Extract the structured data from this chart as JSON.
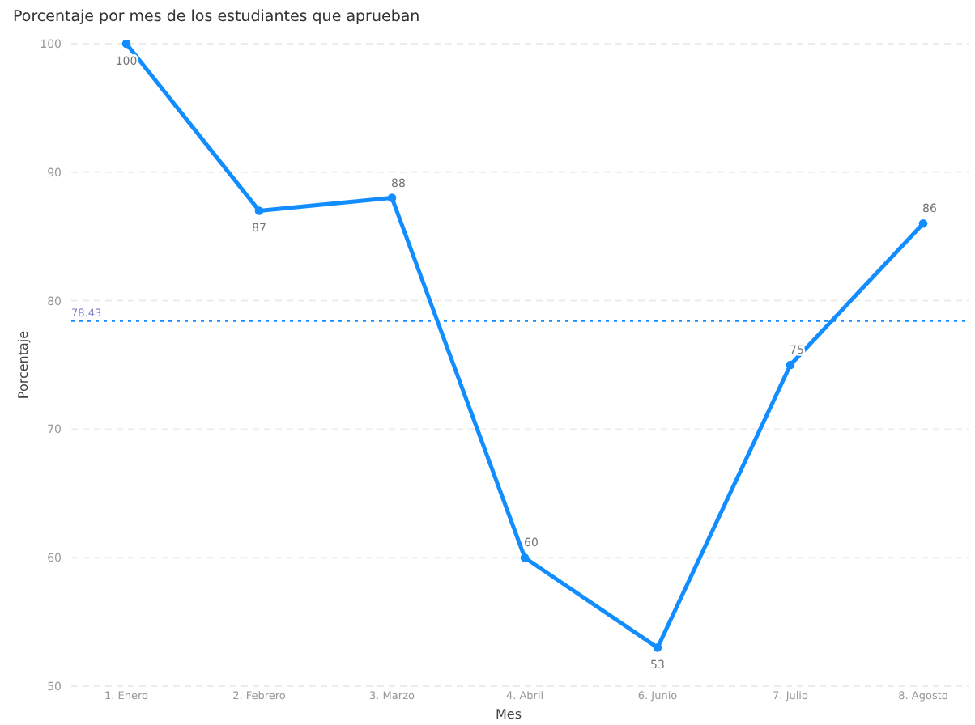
{
  "chart_data": {
    "type": "line",
    "title": "Porcentaje por mes de los estudiantes que aprueban",
    "xlabel": "Mes",
    "ylabel": "Porcentaje",
    "categories": [
      "1. Enero",
      "2. Febrero",
      "3. Marzo",
      "4. Abril",
      "6. Junio",
      "7. Julio",
      "8. Agosto"
    ],
    "series": [
      {
        "color": "#118dff",
        "values": [
          100,
          87,
          88,
          60,
          53,
          75,
          86
        ]
      }
    ],
    "ylim": [
      50,
      100
    ],
    "yticks": [
      50,
      60,
      70,
      80,
      90,
      100
    ],
    "grid": "y",
    "marker": "circle",
    "line_style": "solid",
    "data_labels": true,
    "ref_lines": [
      {
        "axis": "y",
        "value": 78.43,
        "label": "78.43",
        "color": "#118dff",
        "line_style": "dotted"
      }
    ]
  }
}
